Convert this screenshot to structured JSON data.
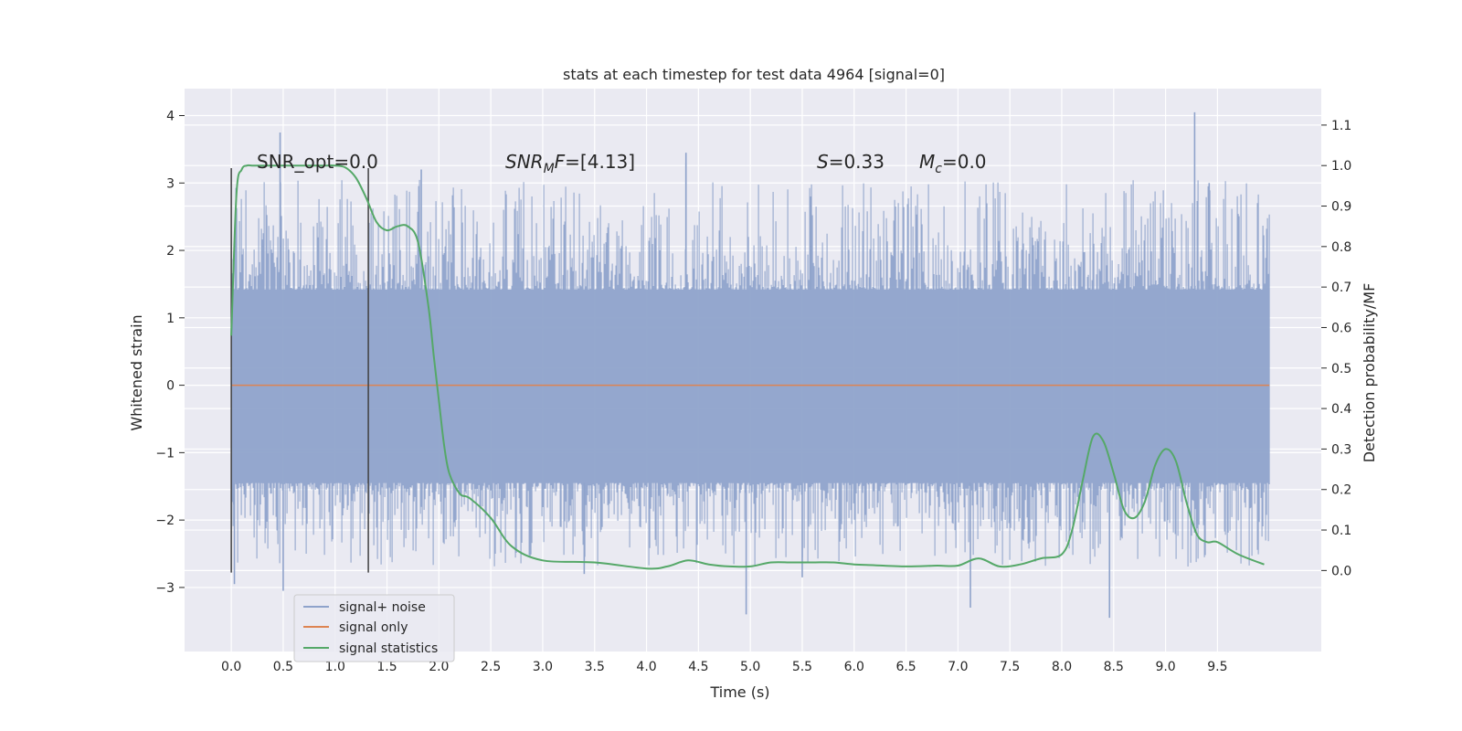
{
  "chart_data": {
    "type": "line",
    "title": "stats at each timestep for test data 4964 [signal=0]",
    "xlabel": "Time (s)",
    "ylabel_left": "Whitened strain",
    "ylabel_right": "Detection probability/MF",
    "xlim": [
      -0.45,
      10.5
    ],
    "ylim_left": [
      -3.95,
      4.4
    ],
    "ylim_right": [
      -0.2,
      1.19
    ],
    "xticks": [
      0.0,
      0.5,
      1.0,
      1.5,
      2.0,
      2.5,
      3.0,
      3.5,
      4.0,
      4.5,
      5.0,
      5.5,
      6.0,
      6.5,
      7.0,
      7.5,
      8.0,
      8.5,
      9.0,
      9.5
    ],
    "xtick_labels": [
      "0.0",
      "0.5",
      "1.0",
      "1.5",
      "2.0",
      "2.5",
      "3.0",
      "3.5",
      "4.0",
      "4.5",
      "5.0",
      "5.5",
      "6.0",
      "6.5",
      "7.0",
      "7.5",
      "8.0",
      "8.5",
      "9.0",
      "9.5"
    ],
    "yticks_left": [
      -3,
      -2,
      -1,
      0,
      1,
      2,
      3,
      4
    ],
    "ytick_labels_left": [
      "−3",
      "−2",
      "−1",
      "0",
      "1",
      "2",
      "3",
      "4"
    ],
    "yticks_right": [
      0.0,
      0.1,
      0.2,
      0.3,
      0.4,
      0.5,
      0.6,
      0.7,
      0.8,
      0.9,
      1.0,
      1.1
    ],
    "ytick_labels_right": [
      "0.0",
      "0.1",
      "0.2",
      "0.3",
      "0.4",
      "0.5",
      "0.6",
      "0.7",
      "0.8",
      "0.9",
      "1.0",
      "1.1"
    ],
    "grid": true,
    "legend_position": "lower-left",
    "series": [
      {
        "name": "signal+ noise",
        "color": "#8fa3cb",
        "axis": "left",
        "x_range": [
          0.0,
          10.0
        ],
        "envelope_band": [
          -1.45,
          1.42
        ],
        "peak_max": [
          4.05,
          3.75,
          3.45,
          3.3,
          3.2,
          3.0,
          2.8
        ],
        "peak_min": [
          -3.45,
          -3.4,
          -3.3,
          -3.05,
          -2.95,
          -2.85,
          -2.8
        ]
      },
      {
        "name": "signal only",
        "color": "#dd8452",
        "axis": "left",
        "x": [
          0.0,
          10.0
        ],
        "y": [
          0.0,
          0.0
        ]
      },
      {
        "name": "signal statistics",
        "color": "#55a868",
        "axis": "right",
        "x": [
          0.0,
          0.05,
          0.1,
          0.15,
          0.2,
          0.3,
          0.5,
          0.7,
          0.9,
          1.0,
          1.1,
          1.2,
          1.3,
          1.4,
          1.5,
          1.6,
          1.7,
          1.8,
          1.9,
          1.95,
          2.0,
          2.05,
          2.1,
          2.2,
          2.3,
          2.5,
          2.7,
          3.0,
          3.5,
          4.0,
          4.2,
          4.4,
          4.6,
          4.8,
          5.0,
          5.2,
          5.4,
          5.6,
          5.8,
          6.0,
          6.2,
          6.5,
          6.8,
          7.0,
          7.2,
          7.4,
          7.6,
          7.8,
          8.0,
          8.1,
          8.2,
          8.3,
          8.4,
          8.5,
          8.6,
          8.7,
          8.8,
          8.9,
          9.0,
          9.1,
          9.2,
          9.3,
          9.4,
          9.5,
          9.7,
          9.95
        ],
        "y": [
          0.58,
          0.93,
          0.99,
          1.0,
          1.0,
          1.0,
          1.0,
          1.0,
          1.0,
          1.0,
          0.995,
          0.97,
          0.92,
          0.86,
          0.84,
          0.85,
          0.85,
          0.81,
          0.65,
          0.53,
          0.42,
          0.31,
          0.24,
          0.19,
          0.178,
          0.13,
          0.06,
          0.025,
          0.02,
          0.005,
          0.01,
          0.025,
          0.015,
          0.01,
          0.01,
          0.02,
          0.02,
          0.02,
          0.02,
          0.015,
          0.013,
          0.01,
          0.012,
          0.012,
          0.03,
          0.01,
          0.015,
          0.03,
          0.04,
          0.1,
          0.22,
          0.33,
          0.32,
          0.24,
          0.15,
          0.13,
          0.17,
          0.26,
          0.3,
          0.27,
          0.17,
          0.09,
          0.07,
          0.07,
          0.04,
          0.015
        ]
      }
    ],
    "vertical_lines": [
      {
        "x": 0.0,
        "y_from": -2.78,
        "y_to": 3.22,
        "color": "#404040"
      },
      {
        "x": 1.32,
        "y_from": -2.78,
        "y_to": 3.22,
        "color": "#404040"
      }
    ],
    "annotations": {
      "snr_opt": "SNR_opt=0.0",
      "snr_mf_base": "SNR",
      "snr_mf_sub": "M",
      "snr_mf_f": "F",
      "snr_mf_value": "=[4.13]",
      "s_symbol": "S",
      "s_value": "=0.33",
      "mc_base": "M",
      "mc_sub": "c",
      "mc_value": "=0.0"
    }
  }
}
